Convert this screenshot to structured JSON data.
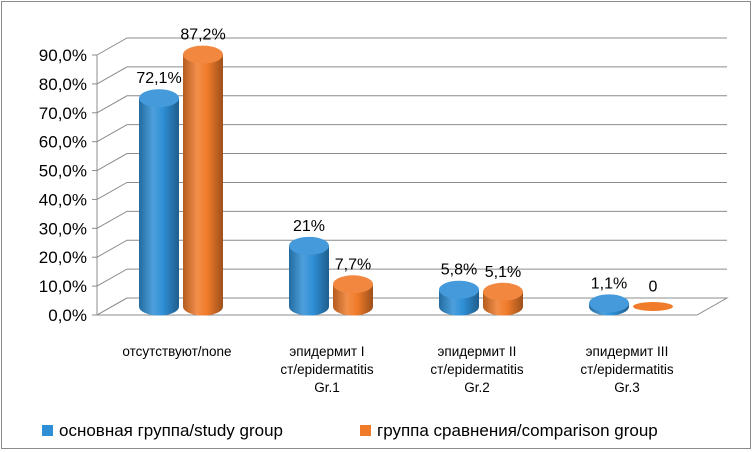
{
  "chart_data": {
    "type": "bar",
    "style": "3d-cylinder",
    "categories": [
      [
        "отсутствуют/none"
      ],
      [
        "эпидермит I",
        "ст/epidermatitis",
        "Gr.1"
      ],
      [
        "эпидермит II",
        "ст/epidermatitis",
        "Gr.2"
      ],
      [
        "эпидермит III",
        "ст/epidermatitis",
        "Gr.3"
      ]
    ],
    "series": [
      {
        "name": "основная группа/study group",
        "color": "#2f8fd6",
        "values": [
          72.1,
          21,
          5.8,
          1.1
        ],
        "value_labels": [
          "72,1%",
          "21%",
          "5,8%",
          "1,1%"
        ]
      },
      {
        "name": "группа сравнения/comparison group",
        "color": "#f07b2a",
        "values": [
          87.2,
          7.7,
          5.1,
          0
        ],
        "value_labels": [
          "87,2%",
          "7,7%",
          "5,1%",
          "0"
        ]
      }
    ],
    "ylim": [
      0,
      90
    ],
    "yticks": [
      {
        "value": 0,
        "label": "0,0%"
      },
      {
        "value": 10,
        "label": "10,0%"
      },
      {
        "value": 20,
        "label": "20,0%"
      },
      {
        "value": 30,
        "label": "30,0%"
      },
      {
        "value": 40,
        "label": "40,0%"
      },
      {
        "value": 50,
        "label": "50,0%"
      },
      {
        "value": 60,
        "label": "60,0%"
      },
      {
        "value": 70,
        "label": "70,0%"
      },
      {
        "value": 80,
        "label": "80,0%"
      },
      {
        "value": 90,
        "label": "90,0%"
      }
    ],
    "grid": true,
    "legend_position": "bottom"
  }
}
